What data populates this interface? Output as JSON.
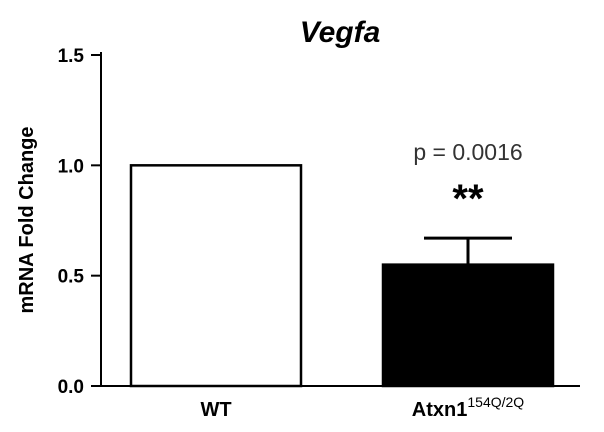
{
  "chart_data": {
    "type": "bar",
    "title": "Vegfa",
    "ylabel": "mRNA Fold Change",
    "xlabel": "",
    "ylim": [
      0,
      1.5
    ],
    "yticks": [
      "0.0",
      "0.5",
      "1.0",
      "1.5"
    ],
    "categories": [
      {
        "label": "WT",
        "sup": ""
      },
      {
        "label": "Atxn1",
        "sup": "154Q/2Q"
      }
    ],
    "values": [
      1.0,
      0.55
    ],
    "errors": [
      0,
      0.12
    ],
    "bar_colors": [
      "#ffffff",
      "#000000"
    ],
    "annotation": {
      "pvalue": "p = 0.0016",
      "stars": "**",
      "category_index": 1
    }
  }
}
